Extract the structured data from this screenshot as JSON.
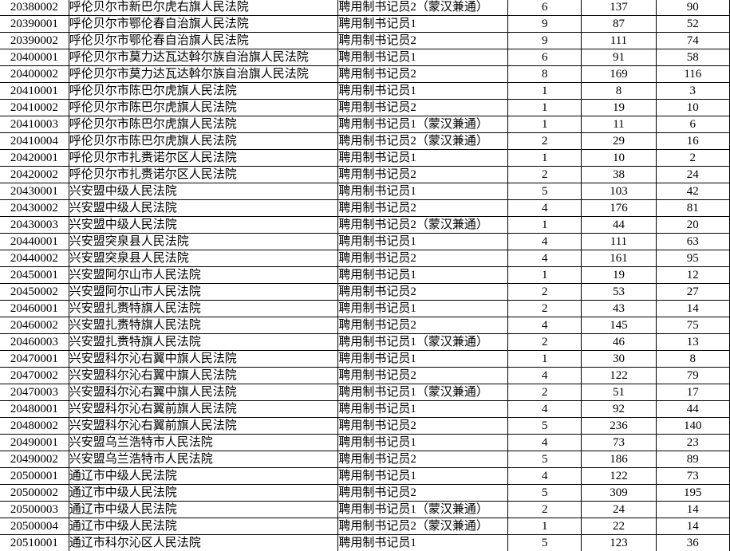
{
  "colors": {
    "background": "#ffffff",
    "border": "#000000",
    "text": "#000000"
  },
  "table": {
    "column_keys": [
      "code",
      "court_name",
      "position_name",
      "num_col_1",
      "num_col_2",
      "num_col_3"
    ],
    "rows": [
      [
        "20380002",
        "呼伦贝尔市新巴尔虎右旗人民法院",
        "聘用制书记员2（蒙汉兼通）",
        "6",
        "137",
        "90"
      ],
      [
        "20390001",
        "呼伦贝尔市鄂伦春自治旗人民法院",
        "聘用制书记员1",
        "9",
        "87",
        "52"
      ],
      [
        "20390002",
        "呼伦贝尔市鄂伦春自治旗人民法院",
        "聘用制书记员2",
        "9",
        "111",
        "74"
      ],
      [
        "20400001",
        "呼伦贝尔市莫力达瓦达斡尔族自治旗人民法院",
        "聘用制书记员1",
        "6",
        "91",
        "58"
      ],
      [
        "20400002",
        "呼伦贝尔市莫力达瓦达斡尔族自治旗人民法院",
        "聘用制书记员2",
        "8",
        "169",
        "116"
      ],
      [
        "20410001",
        "呼伦贝尔市陈巴尔虎旗人民法院",
        "聘用制书记员1",
        "1",
        "8",
        "3"
      ],
      [
        "20410002",
        "呼伦贝尔市陈巴尔虎旗人民法院",
        "聘用制书记员2",
        "1",
        "19",
        "10"
      ],
      [
        "20410003",
        "呼伦贝尔市陈巴尔虎旗人民法院",
        "聘用制书记员1（蒙汉兼通）",
        "1",
        "11",
        "6"
      ],
      [
        "20410004",
        "呼伦贝尔市陈巴尔虎旗人民法院",
        "聘用制书记员2（蒙汉兼通）",
        "2",
        "29",
        "16"
      ],
      [
        "20420001",
        "呼伦贝尔市扎赉诺尔区人民法院",
        "聘用制书记员1",
        "1",
        "10",
        "2"
      ],
      [
        "20420002",
        "呼伦贝尔市扎赉诺尔区人民法院",
        "聘用制书记员2",
        "2",
        "38",
        "24"
      ],
      [
        "20430001",
        "兴安盟中级人民法院",
        "聘用制书记员1",
        "5",
        "103",
        "42"
      ],
      [
        "20430002",
        "兴安盟中级人民法院",
        "聘用制书记员2",
        "4",
        "176",
        "81"
      ],
      [
        "20430003",
        "兴安盟中级人民法院",
        "聘用制书记员2（蒙汉兼通）",
        "1",
        "44",
        "20"
      ],
      [
        "20440001",
        "兴安盟突泉县人民法院",
        "聘用制书记员1",
        "4",
        "111",
        "63"
      ],
      [
        "20440002",
        "兴安盟突泉县人民法院",
        "聘用制书记员2",
        "4",
        "161",
        "95"
      ],
      [
        "20450001",
        "兴安盟阿尔山市人民法院",
        "聘用制书记员1",
        "1",
        "19",
        "12"
      ],
      [
        "20450002",
        "兴安盟阿尔山市人民法院",
        "聘用制书记员2",
        "2",
        "53",
        "27"
      ],
      [
        "20460001",
        "兴安盟扎赉特旗人民法院",
        "聘用制书记员1",
        "2",
        "43",
        "14"
      ],
      [
        "20460002",
        "兴安盟扎赉特旗人民法院",
        "聘用制书记员2",
        "4",
        "145",
        "75"
      ],
      [
        "20460003",
        "兴安盟扎赉特旗人民法院",
        "聘用制书记员1（蒙汉兼通）",
        "2",
        "46",
        "13"
      ],
      [
        "20470001",
        "兴安盟科尔沁右翼中旗人民法院",
        "聘用制书记员1",
        "1",
        "30",
        "8"
      ],
      [
        "20470002",
        "兴安盟科尔沁右翼中旗人民法院",
        "聘用制书记员2",
        "4",
        "122",
        "79"
      ],
      [
        "20470003",
        "兴安盟科尔沁右翼中旗人民法院",
        "聘用制书记员1（蒙汉兼通）",
        "2",
        "51",
        "17"
      ],
      [
        "20480001",
        "兴安盟科尔沁右翼前旗人民法院",
        "聘用制书记员1",
        "4",
        "92",
        "44"
      ],
      [
        "20480002",
        "兴安盟科尔沁右翼前旗人民法院",
        "聘用制书记员2",
        "5",
        "236",
        "140"
      ],
      [
        "20490001",
        "兴安盟乌兰浩特市人民法院",
        "聘用制书记员1",
        "4",
        "73",
        "23"
      ],
      [
        "20490002",
        "兴安盟乌兰浩特市人民法院",
        "聘用制书记员2",
        "5",
        "186",
        "89"
      ],
      [
        "20500001",
        "通辽市中级人民法院",
        "聘用制书记员1",
        "4",
        "122",
        "73"
      ],
      [
        "20500002",
        "通辽市中级人民法院",
        "聘用制书记员2",
        "5",
        "309",
        "195"
      ],
      [
        "20500003",
        "通辽市中级人民法院",
        "聘用制书记员1（蒙汉兼通）",
        "2",
        "24",
        "14"
      ],
      [
        "20500004",
        "通辽市中级人民法院",
        "聘用制书记员2（蒙汉兼通）",
        "1",
        "22",
        "14"
      ],
      [
        "20510001",
        "通辽市科尔沁区人民法院",
        "聘用制书记员1",
        "5",
        "123",
        "36"
      ]
    ]
  }
}
